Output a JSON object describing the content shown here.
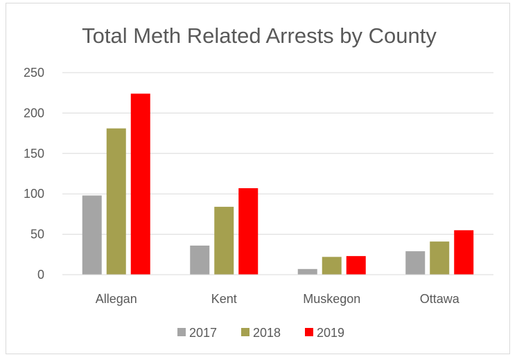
{
  "chart_data": {
    "type": "bar",
    "title": "Total Meth Related Arrests by County",
    "xlabel": "",
    "ylabel": "",
    "categories": [
      "Allegan",
      "Kent",
      "Muskegon",
      "Ottawa"
    ],
    "series": [
      {
        "name": "2017",
        "color": "#a5a5a5",
        "values": [
          98,
          36,
          7,
          29
        ]
      },
      {
        "name": "2018",
        "color": "#a5a04f",
        "values": [
          181,
          84,
          22,
          41
        ]
      },
      {
        "name": "2019",
        "color": "#ff0000",
        "values": [
          224,
          107,
          23,
          55
        ]
      }
    ],
    "ylim": [
      0,
      250
    ],
    "yticks": [
      "0",
      "50",
      "100",
      "150",
      "200",
      "250"
    ],
    "grid": true,
    "legend": "bottom"
  }
}
